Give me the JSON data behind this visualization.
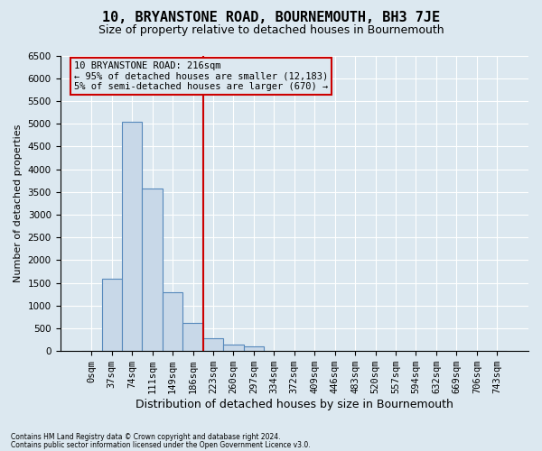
{
  "title": "10, BRYANSTONE ROAD, BOURNEMOUTH, BH3 7JE",
  "subtitle": "Size of property relative to detached houses in Bournemouth",
  "xlabel": "Distribution of detached houses by size in Bournemouth",
  "ylabel": "Number of detached properties",
  "footnote1": "Contains HM Land Registry data © Crown copyright and database right 2024.",
  "footnote2": "Contains public sector information licensed under the Open Government Licence v3.0.",
  "bin_labels": [
    "0sqm",
    "37sqm",
    "74sqm",
    "111sqm",
    "149sqm",
    "186sqm",
    "223sqm",
    "260sqm",
    "297sqm",
    "334sqm",
    "372sqm",
    "409sqm",
    "446sqm",
    "483sqm",
    "520sqm",
    "557sqm",
    "594sqm",
    "632sqm",
    "669sqm",
    "706sqm",
    "743sqm"
  ],
  "bar_values": [
    0,
    1600,
    5050,
    3580,
    1300,
    620,
    280,
    140,
    100,
    0,
    0,
    0,
    0,
    0,
    0,
    0,
    0,
    0,
    0,
    0,
    0
  ],
  "bar_color": "#c8d8e8",
  "bar_edge_color": "#5588bb",
  "property_bin_index": 6,
  "vline_color": "#cc0000",
  "annotation_line1": "10 BRYANSTONE ROAD: 216sqm",
  "annotation_line2": "← 95% of detached houses are smaller (12,183)",
  "annotation_line3": "5% of semi-detached houses are larger (670) →",
  "annotation_box_color": "#cc0000",
  "ylim": [
    0,
    6500
  ],
  "yticks": [
    0,
    500,
    1000,
    1500,
    2000,
    2500,
    3000,
    3500,
    4000,
    4500,
    5000,
    5500,
    6000,
    6500
  ],
  "background_color": "#dce8f0",
  "grid_color": "#ffffff",
  "title_fontsize": 11,
  "subtitle_fontsize": 9,
  "xlabel_fontsize": 9,
  "ylabel_fontsize": 8,
  "tick_fontsize": 7.5
}
